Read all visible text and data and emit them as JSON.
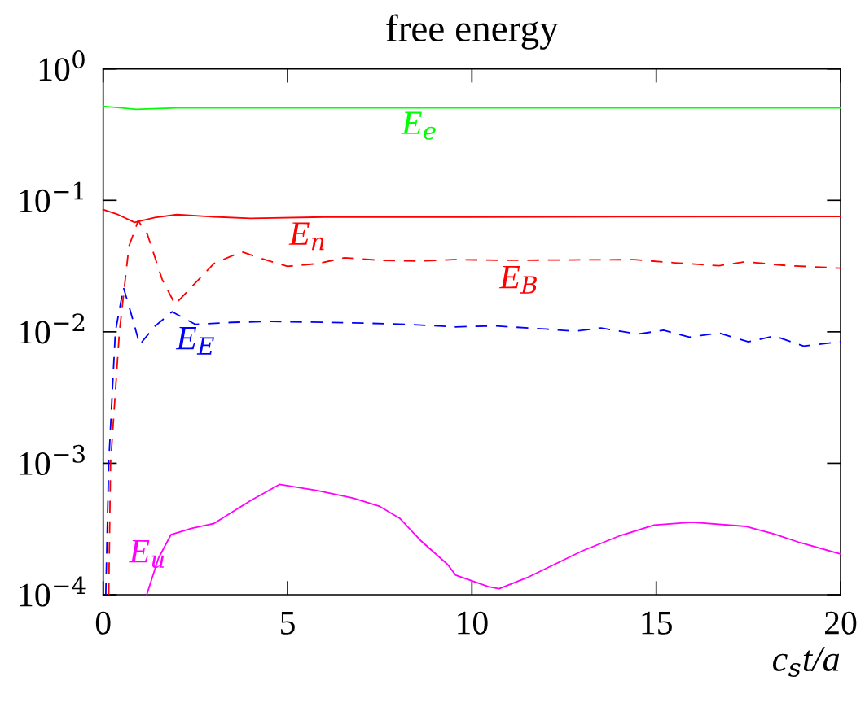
{
  "chart_data": {
    "type": "line",
    "title": "free energy",
    "xlabel": "c$_{s}$t/a",
    "log": "y",
    "xlim": [
      0,
      20
    ],
    "ylim": [
      0.0001,
      1
    ],
    "xticks": [
      0,
      5,
      10,
      15,
      20
    ],
    "yticks": [
      {
        "value": 0.0001,
        "label": "10$^{−4}$"
      },
      {
        "value": 0.001,
        "label": "10$^{−3}$"
      },
      {
        "value": 0.01,
        "label": "10$^{−2}$"
      },
      {
        "value": 0.1,
        "label": "10$^{−1}$"
      },
      {
        "value": 1,
        "label": "10$^{0}$"
      }
    ],
    "grid": false,
    "marker": "none",
    "series": [
      {
        "color": "#00ff00",
        "line_style": "solid",
        "x": [
          0,
          0.5,
          0.9,
          1.5,
          2,
          3,
          5,
          10,
          15,
          20
        ],
        "values": [
          0.52,
          0.505,
          0.493,
          0.5,
          0.505,
          0.505,
          0.505,
          0.505,
          0.505,
          0.505
        ]
      },
      {
        "color": "#ff0000",
        "line_style": "solid",
        "x": [
          0,
          0.4,
          0.85,
          1.4,
          2.0,
          3.0,
          4.0,
          6.0,
          10,
          15,
          20
        ],
        "values": [
          0.085,
          0.078,
          0.068,
          0.074,
          0.078,
          0.075,
          0.073,
          0.0747,
          0.0747,
          0.0752,
          0.0755
        ]
      },
      {
        "color": "#ff0000",
        "line_style": "dashed",
        "x": [
          0.15,
          0.2,
          0.44,
          0.7,
          0.95,
          1.2,
          1.6,
          1.95,
          2.4,
          3.0,
          3.75,
          4.3,
          5.0,
          5.8,
          6.55,
          7.5,
          8.5,
          9.5,
          11,
          12.5,
          14.4,
          15.5,
          16.7,
          17.4,
          18.5,
          20
        ],
        "values": [
          0.0001,
          0.001,
          0.01,
          0.045,
          0.07,
          0.055,
          0.025,
          0.0162,
          0.022,
          0.033,
          0.0407,
          0.036,
          0.0315,
          0.033,
          0.0366,
          0.035,
          0.0345,
          0.0354,
          0.035,
          0.0352,
          0.0354,
          0.0335,
          0.0318,
          0.0341,
          0.032,
          0.0305
        ]
      },
      {
        "color": "#0000ff",
        "line_style": "dashed",
        "x": [
          0.07,
          0.15,
          0.33,
          0.55,
          0.75,
          0.99,
          1.4,
          1.87,
          2.5,
          3.5,
          4.56,
          6.77,
          8.24,
          9.56,
          10.6,
          12.0,
          12.8,
          13.5,
          14.5,
          15.2,
          15.9,
          16.7,
          17.5,
          18.2,
          19.0,
          20
        ],
        "values": [
          0.0001,
          0.001,
          0.01,
          0.0217,
          0.014,
          0.008,
          0.011,
          0.0142,
          0.0114,
          0.0118,
          0.012,
          0.0117,
          0.0114,
          0.0109,
          0.0111,
          0.0105,
          0.0101,
          0.0107,
          0.0096,
          0.0103,
          0.0091,
          0.0098,
          0.0084,
          0.0093,
          0.0078,
          0.0084
        ]
      },
      {
        "color": "#ff00ff",
        "line_style": "solid",
        "x": [
          1.18,
          1.5,
          1.84,
          2.4,
          3.0,
          4.0,
          4.78,
          5.8,
          6.77,
          7.5,
          8.05,
          8.6,
          9.34,
          9.56,
          10.45,
          10.74,
          11.5,
          13.0,
          14.0,
          14.94,
          15.97,
          17.44,
          18.2,
          18.9,
          20
        ],
        "values": [
          0.0001,
          0.00019,
          0.000287,
          0.00032,
          0.000348,
          0.00052,
          0.00069,
          0.00062,
          0.000545,
          0.00047,
          0.00038,
          0.00026,
          0.00017,
          0.000141,
          0.000115,
          0.000111,
          0.000135,
          0.000216,
          0.00028,
          0.000339,
          0.000356,
          0.000331,
          0.00029,
          0.000249,
          0.000204
        ]
      }
    ],
    "annotations": [
      {
        "text": "E$_{e}$",
        "x": 9.2,
        "y": 0.52
      },
      {
        "text": "E$_{n}$",
        "x": 6.18,
        "y": 0.075
      },
      {
        "text": "E$_{B}$",
        "x": 11.95,
        "y": 0.035
      },
      {
        "text": "E$_{E}$",
        "x": 3.17,
        "y": 0.012
      },
      {
        "text": "E$_{u}$",
        "x": 1.84,
        "y": 0.000287
      }
    ]
  }
}
